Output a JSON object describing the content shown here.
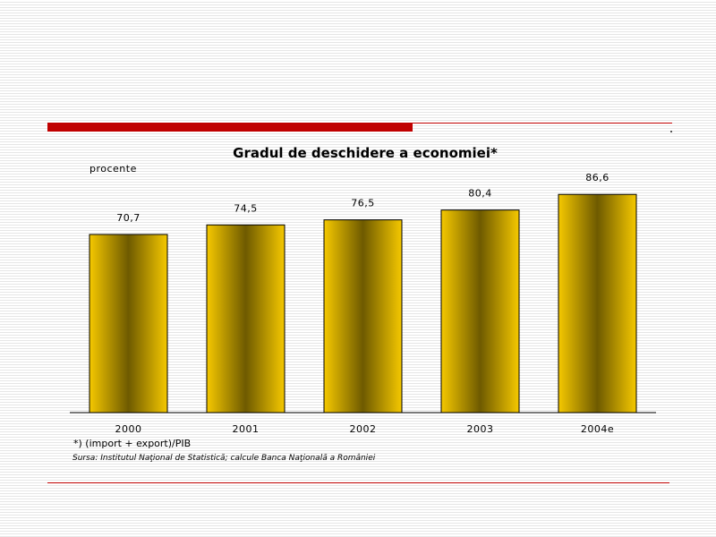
{
  "chart_data": {
    "type": "bar",
    "title": "Gradul de deschidere a economiei*",
    "ylabel": "procente",
    "categories": [
      "2000",
      "2001",
      "2002",
      "2003",
      "2004e"
    ],
    "values": [
      70.7,
      74.5,
      76.5,
      80.4,
      86.6
    ],
    "value_labels": [
      "70,7",
      "74,5",
      "76,5",
      "80,4",
      "86,6"
    ],
    "ylim": [
      0,
      100
    ],
    "grid": false,
    "legend": "none",
    "colors": {
      "bar_edge": "#f5c800",
      "bar_center": "#6e5a00",
      "outline": "#000000"
    }
  },
  "footnote": "*) (import + export)/PIB",
  "source": "Sursa: Institutul Naţional de Statistică; calcule Banca Naţională a României",
  "colors": {
    "accent": "#c00000"
  }
}
